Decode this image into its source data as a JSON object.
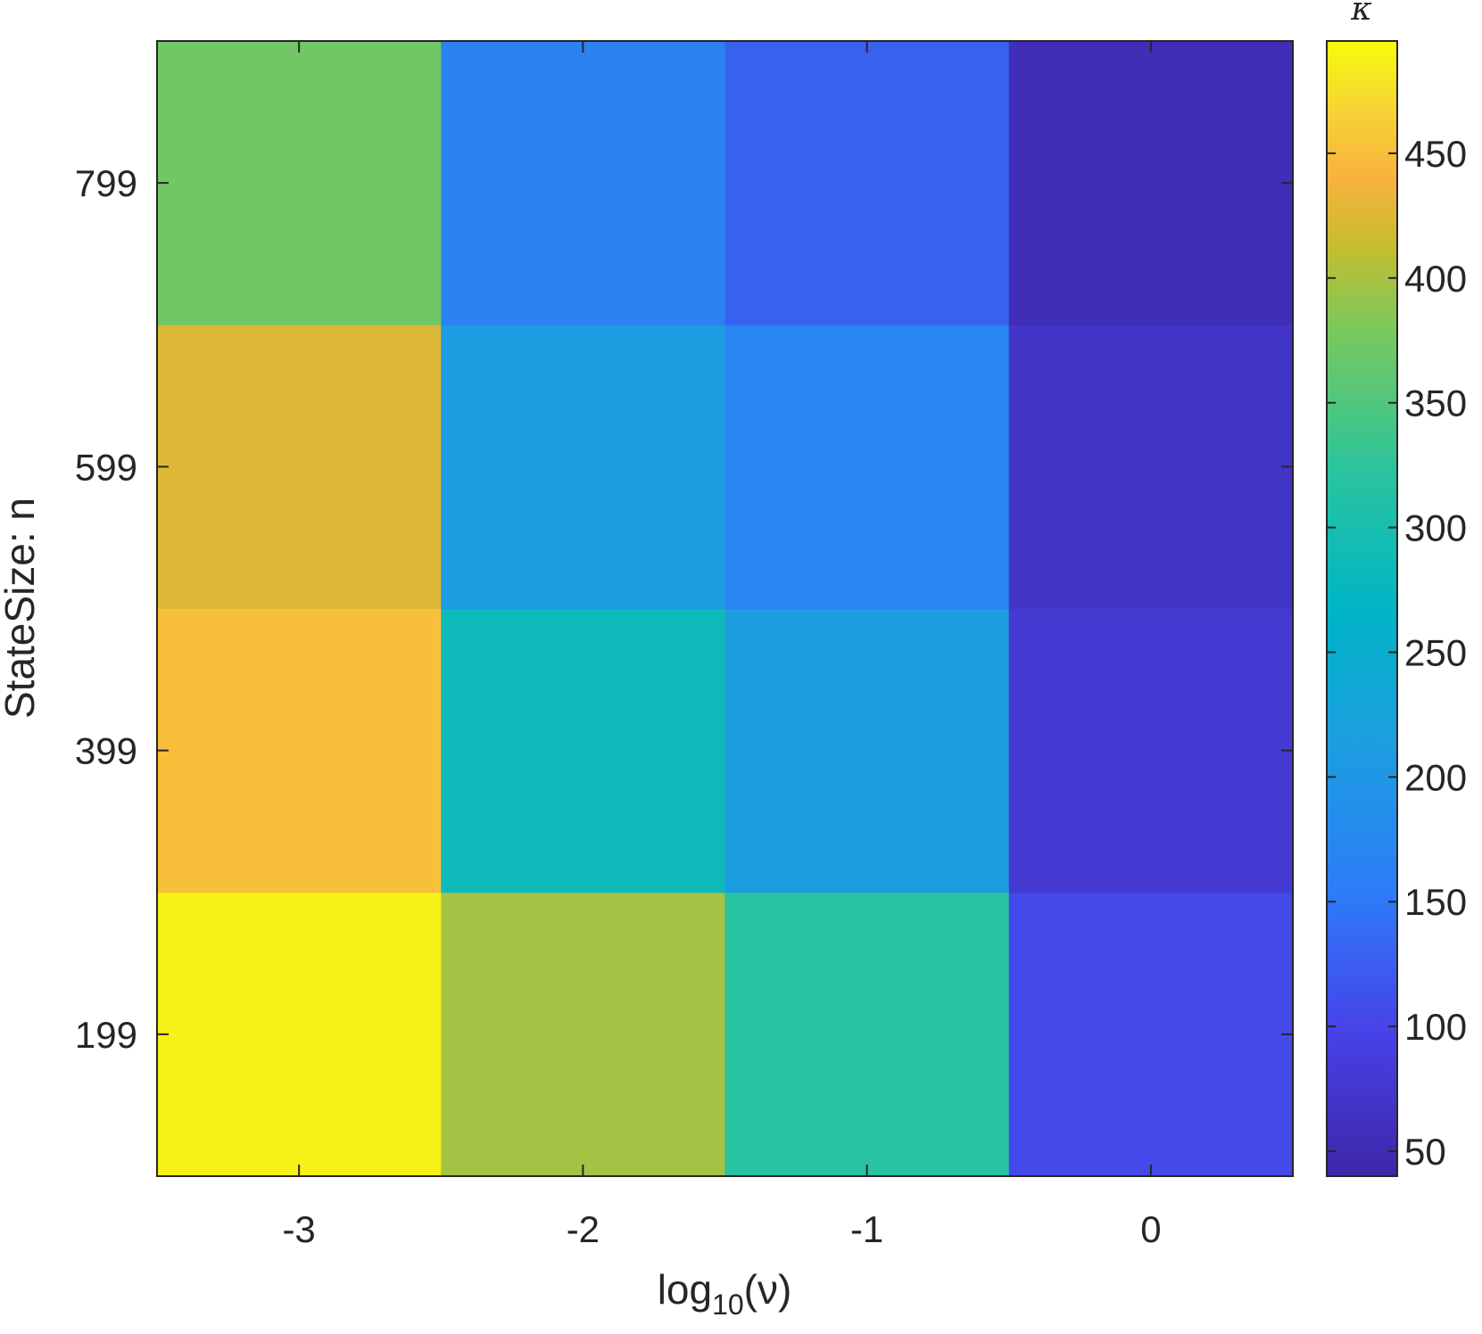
{
  "chart_data": {
    "type": "heatmap",
    "x": {
      "label_base": "log",
      "label_subscript": "10",
      "label_arg": "(ν)",
      "categories": [
        "-3",
        "-2",
        "-1",
        "0"
      ]
    },
    "y": {
      "label": "StateSize: n",
      "categories": [
        "199",
        "399",
        "599",
        "799"
      ]
    },
    "values": [
      [
        488,
        398,
        320,
        105
      ],
      [
        452,
        285,
        212,
        78
      ],
      [
        425,
        210,
        170,
        68
      ],
      [
        372,
        165,
        128,
        55
      ]
    ],
    "colorbar": {
      "title": "κ",
      "min": 40,
      "max": 495,
      "ticks": [
        50,
        100,
        150,
        200,
        250,
        300,
        350,
        400,
        450
      ]
    },
    "grid": false
  }
}
